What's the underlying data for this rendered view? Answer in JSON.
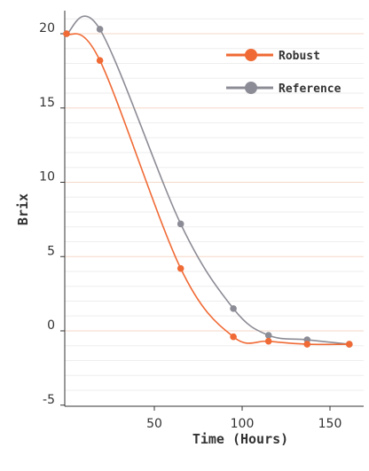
{
  "chart_data": {
    "type": "line",
    "xlabel": "Time (Hours)",
    "ylabel": "Brix",
    "xlim": [
      0,
      165
    ],
    "ylim": [
      -5,
      22
    ],
    "xticks": [
      50,
      100,
      150
    ],
    "yticks": [
      -5,
      0,
      5,
      10,
      15,
      20
    ],
    "grid": "horizontal",
    "legend_position": "top-right",
    "series": [
      {
        "name": "Robust",
        "color": "#f06a35",
        "x": [
          0,
          19,
          65,
          95,
          115,
          137,
          161
        ],
        "y": [
          20,
          18.2,
          4.2,
          -0.4,
          -0.7,
          -0.9,
          -0.9
        ]
      },
      {
        "name": "Reference",
        "color": "#8c8c96",
        "x": [
          0,
          19,
          65,
          95,
          115,
          137,
          161
        ],
        "y": [
          20,
          20.3,
          7.2,
          1.5,
          -0.3,
          -0.6,
          -0.9
        ]
      }
    ]
  }
}
